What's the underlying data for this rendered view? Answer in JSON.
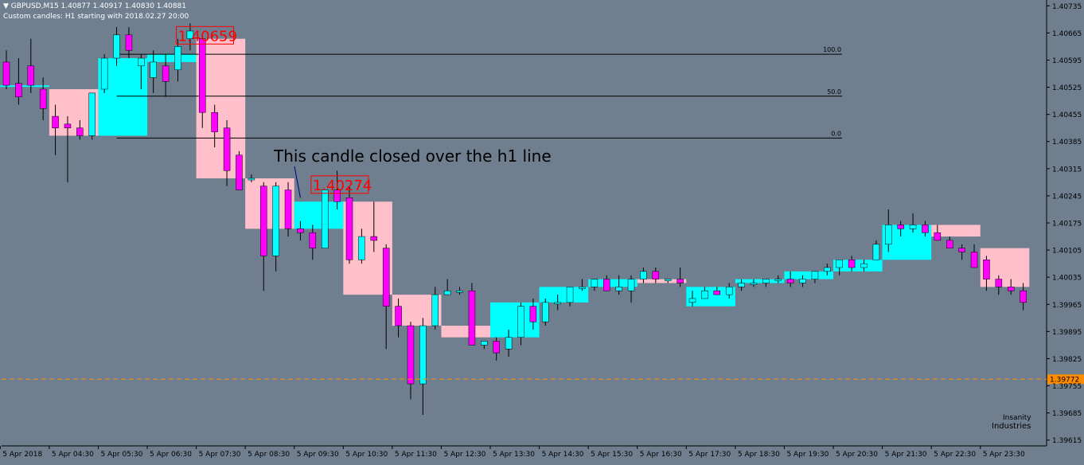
{
  "header": {
    "symbol_line": "GBPUSD,M15  1.40877 1.40917 1.40830 1.40881",
    "indicator_line": "Custom candles: H1 starting with 2018.02.27 20:00"
  },
  "colors": {
    "background": "#6f7f90",
    "bull_body": "#00ffff",
    "bear_body": "#ff00ff",
    "h1_bull_box": "#00ffff",
    "h1_bear_box": "#ffc0cb",
    "wick": "#000000",
    "fib_line": "#000000",
    "bid_line": "#ff8c00",
    "annotation_text": "#000000",
    "price_label": "#ff0000"
  },
  "annotation": {
    "text": "This candle closed over the h1 line"
  },
  "logo": {
    "line1": "Insanity",
    "line2": "Industries"
  },
  "chart_data": {
    "type": "candlestick",
    "symbol": "GBPUSD",
    "timeframe": "M15",
    "y_ticks": [
      "1.40735",
      "1.40665",
      "1.40595",
      "1.40525",
      "1.40455",
      "1.40385",
      "1.40315",
      "1.40245",
      "1.40175",
      "1.40105",
      "1.40035",
      "1.39965",
      "1.39895",
      "1.39825",
      "1.39755",
      "1.39685",
      "1.39615"
    ],
    "ylim": [
      1.396,
      1.4075
    ],
    "x_labels": [
      "5 Apr 2018",
      "5 Apr 04:30",
      "5 Apr 05:30",
      "5 Apr 06:30",
      "5 Apr 07:30",
      "5 Apr 08:30",
      "5 Apr 09:30",
      "5 Apr 10:30",
      "5 Apr 11:30",
      "5 Apr 12:30",
      "5 Apr 13:30",
      "5 Apr 14:30",
      "5 Apr 15:30",
      "5 Apr 16:30",
      "5 Apr 17:30",
      "5 Apr 18:30",
      "5 Apr 19:30",
      "5 Apr 20:30",
      "5 Apr 21:30",
      "5 Apr 22:30",
      "5 Apr 23:30"
    ],
    "bid_price": "1.39772",
    "bid_value": 1.39772,
    "fib_levels": [
      {
        "label": "100.0",
        "price": 1.4061
      },
      {
        "label": "50.0",
        "price": 1.40502
      },
      {
        "label": "0.0",
        "price": 1.40394
      }
    ],
    "price_labels": [
      {
        "text": "1.40659",
        "price": 1.40659,
        "bar": 14
      },
      {
        "text": "1.40274",
        "price": 1.40274,
        "bar": 25
      }
    ],
    "m15_candles": [
      [
        1.4059,
        1.4062,
        1.4052,
        1.4053
      ],
      [
        1.40535,
        1.406,
        1.4048,
        1.405
      ],
      [
        1.4058,
        1.4065,
        1.4051,
        1.4053
      ],
      [
        1.4052,
        1.4055,
        1.4044,
        1.4047
      ],
      [
        1.4045,
        1.4048,
        1.4035,
        1.4042
      ],
      [
        1.4043,
        1.4045,
        1.4028,
        1.4042
      ],
      [
        1.4042,
        1.4044,
        1.4039,
        1.404
      ],
      [
        1.404,
        1.4051,
        1.4039,
        1.4051
      ],
      [
        1.4052,
        1.4061,
        1.4051,
        1.406
      ],
      [
        1.406,
        1.4068,
        1.4058,
        1.4066
      ],
      [
        1.4066,
        1.4068,
        1.406,
        1.4062
      ],
      [
        1.4058,
        1.4061,
        1.4052,
        1.406
      ],
      [
        1.4055,
        1.4062,
        1.4051,
        1.4059
      ],
      [
        1.4058,
        1.4061,
        1.405,
        1.4054
      ],
      [
        1.4057,
        1.4065,
        1.4054,
        1.4063
      ],
      [
        1.4065,
        1.4069,
        1.4062,
        1.4067
      ],
      [
        1.4065,
        1.4066,
        1.4042,
        1.4046
      ],
      [
        1.4046,
        1.4048,
        1.4037,
        1.4041
      ],
      [
        1.4042,
        1.4044,
        1.4027,
        1.4031
      ],
      [
        1.4035,
        1.4036,
        1.4026,
        1.4026
      ],
      [
        1.4029,
        1.403,
        1.4028,
        1.4029
      ],
      [
        1.4027,
        1.4028,
        1.4,
        1.4009
      ],
      [
        1.4009,
        1.4028,
        1.4005,
        1.4027
      ],
      [
        1.4026,
        1.4028,
        1.4014,
        1.4016
      ],
      [
        1.4016,
        1.4018,
        1.4013,
        1.4015
      ],
      [
        1.4015,
        1.4017,
        1.4008,
        1.4011
      ],
      [
        1.4011,
        1.4025,
        1.4011,
        1.4026
      ],
      [
        1.4026,
        1.4031,
        1.4021,
        1.4023
      ],
      [
        1.4024,
        1.4027,
        1.4007,
        1.4008
      ],
      [
        1.4008,
        1.4016,
        1.4007,
        1.4014
      ],
      [
        1.4014,
        1.4023,
        1.401,
        1.4013
      ],
      [
        1.4011,
        1.4012,
        1.3985,
        1.3996
      ],
      [
        1.3996,
        1.3998,
        1.3988,
        1.3991
      ],
      [
        1.3991,
        1.3992,
        1.3972,
        1.3976
      ],
      [
        1.3976,
        1.3993,
        1.3968,
        1.3991
      ],
      [
        1.3991,
        1.4001,
        1.399,
        1.3999
      ],
      [
        1.3999,
        1.4003,
        1.3999,
        1.4
      ],
      [
        1.4,
        1.4001,
        1.3999,
        1.4
      ],
      [
        1.4,
        1.4002,
        1.3986,
        1.3986
      ],
      [
        1.3986,
        1.3987,
        1.3985,
        1.3987
      ],
      [
        1.3987,
        1.3988,
        1.3982,
        1.3984
      ],
      [
        1.3985,
        1.399,
        1.3983,
        1.3988
      ],
      [
        1.3988,
        1.3997,
        1.3986,
        1.3996
      ],
      [
        1.3996,
        1.3998,
        1.399,
        1.3992
      ],
      [
        1.3992,
        1.3998,
        1.3991,
        1.3997
      ],
      [
        1.3997,
        1.3999,
        1.3995,
        1.3997
      ],
      [
        1.3997,
        1.4001,
        1.3996,
        1.4001
      ],
      [
        1.4001,
        1.4003,
        1.4,
        1.4001
      ],
      [
        1.4001,
        1.4003,
        1.4,
        1.4003
      ],
      [
        1.4003,
        1.4004,
        1.4,
        1.4
      ],
      [
        1.4,
        1.4004,
        1.3999,
        1.4001
      ],
      [
        1.4,
        1.4004,
        1.3997,
        1.4003
      ],
      [
        1.4003,
        1.4006,
        1.4002,
        1.4005
      ],
      [
        1.4005,
        1.4006,
        1.4002,
        1.4003
      ],
      [
        1.4003,
        1.4003,
        1.4002,
        1.4003
      ],
      [
        1.4003,
        1.4006,
        1.4001,
        1.4002
      ],
      [
        1.3997,
        1.4,
        1.3996,
        1.3998
      ],
      [
        1.3998,
        1.4001,
        1.3998,
        1.4
      ],
      [
        1.4,
        1.4001,
        1.3999,
        1.3999
      ],
      [
        1.3999,
        1.4002,
        1.3998,
        1.4001
      ],
      [
        1.4001,
        1.4003,
        1.4,
        1.4002
      ],
      [
        1.4002,
        1.4003,
        1.4001,
        1.4002
      ],
      [
        1.4002,
        1.4003,
        1.4001,
        1.4003
      ],
      [
        1.4003,
        1.4004,
        1.4002,
        1.4003
      ],
      [
        1.4003,
        1.4005,
        1.4001,
        1.4002
      ],
      [
        1.4002,
        1.4004,
        1.4001,
        1.4003
      ],
      [
        1.4003,
        1.4005,
        1.4002,
        1.4005
      ],
      [
        1.4005,
        1.4007,
        1.4004,
        1.4006
      ],
      [
        1.4006,
        1.4008,
        1.4004,
        1.4008
      ],
      [
        1.4008,
        1.4009,
        1.4005,
        1.4006
      ],
      [
        1.4006,
        1.4008,
        1.4005,
        1.4007
      ],
      [
        1.4008,
        1.4013,
        1.4008,
        1.4012
      ],
      [
        1.4012,
        1.4021,
        1.401,
        1.4017
      ],
      [
        1.4017,
        1.4018,
        1.4014,
        1.4016
      ],
      [
        1.4016,
        1.402,
        1.4015,
        1.4017
      ],
      [
        1.4017,
        1.4018,
        1.4014,
        1.4015
      ],
      [
        1.4015,
        1.4017,
        1.4013,
        1.4013
      ],
      [
        1.4013,
        1.4014,
        1.4011,
        1.4011
      ],
      [
        1.4011,
        1.4012,
        1.4008,
        1.401
      ],
      [
        1.401,
        1.4012,
        1.4006,
        1.4006
      ],
      [
        1.4008,
        1.4009,
        1.4,
        1.4003
      ],
      [
        1.4003,
        1.4004,
        1.3999,
        1.4001
      ],
      [
        1.4001,
        1.4003,
        1.3999,
        1.4
      ],
      [
        1.4,
        1.4002,
        1.3995,
        1.3997
      ]
    ],
    "h1_boxes": [
      [
        1.4053,
        1.4062,
        1.4052,
        1.4053
      ],
      [
        1.4052,
        1.4055,
        1.4039,
        1.404
      ],
      [
        1.404,
        1.4061,
        1.4039,
        1.406
      ],
      [
        1.4059,
        1.4061,
        1.405,
        1.4061
      ],
      [
        1.4065,
        1.4069,
        1.4029,
        1.4029
      ],
      [
        1.4029,
        1.4029,
        1.4016,
        1.4016
      ],
      [
        1.4016,
        1.4023,
        1.4016,
        1.4023
      ],
      [
        1.4023,
        1.4023,
        1.3999,
        1.3999
      ],
      [
        1.3999,
        1.3999,
        1.3991,
        1.3991
      ],
      [
        1.3991,
        1.3991,
        1.3988,
        1.3988
      ],
      [
        1.3988,
        1.3997,
        1.3987,
        1.3997
      ],
      [
        1.3997,
        1.4001,
        1.3997,
        1.4001
      ],
      [
        1.4001,
        1.4003,
        1.4001,
        1.4003
      ],
      [
        1.4003,
        1.4003,
        1.4002,
        1.4002
      ],
      [
        1.3996,
        1.4001,
        1.3996,
        1.4001
      ],
      [
        1.4002,
        1.4003,
        1.4002,
        1.4003
      ],
      [
        1.4003,
        1.4005,
        1.4003,
        1.4005
      ],
      [
        1.4005,
        1.4008,
        1.4005,
        1.4008
      ],
      [
        1.4008,
        1.4017,
        1.4008,
        1.4017
      ],
      [
        1.4017,
        1.4017,
        1.4014,
        1.4014
      ],
      [
        1.4011,
        1.4011,
        1.4001,
        1.4001
      ]
    ]
  }
}
